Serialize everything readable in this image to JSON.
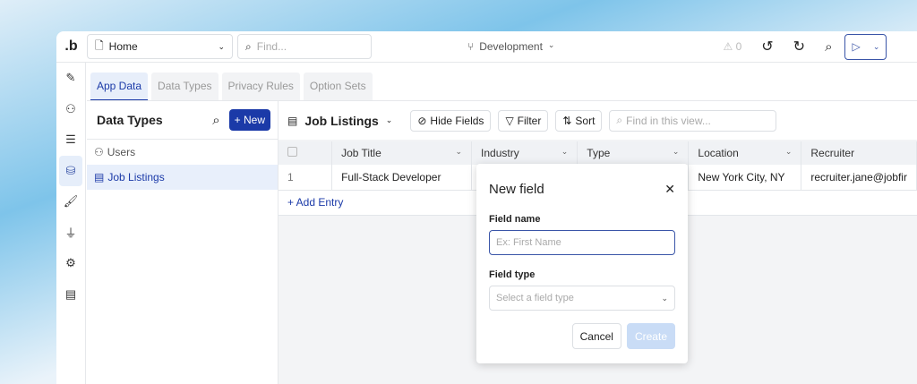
{
  "topbar": {
    "logo": ".b",
    "page": "Home",
    "find_placeholder": "Find...",
    "branch": "Development",
    "warnings": "0"
  },
  "tabs": [
    "App Data",
    "Data Types",
    "Privacy Rules",
    "Option Sets"
  ],
  "left": {
    "title": "Data Types",
    "new_label": "+ New",
    "items": [
      "Users",
      "Job Listings"
    ]
  },
  "toolbar": {
    "view": "Job Listings",
    "hide_fields": "Hide Fields",
    "filter": "Filter",
    "sort": "Sort",
    "find_placeholder": "Find in this view..."
  },
  "table": {
    "columns": [
      "Job Title",
      "Industry",
      "Type",
      "Location",
      "Recruiter"
    ],
    "rows": [
      {
        "num": "1",
        "job_title": "Full-Stack Developer",
        "industry": "",
        "type": "",
        "location": "New York City, NY",
        "recruiter": "recruiter.jane@jobfir"
      }
    ],
    "add_entry": "+ Add Entry"
  },
  "modal": {
    "title": "New field",
    "field_name_label": "Field name",
    "field_name_placeholder": "Ex: First Name",
    "field_type_label": "Field type",
    "field_type_placeholder": "Select a field type",
    "cancel": "Cancel",
    "create": "Create"
  },
  "colors": {
    "accent": "#1b3aa8"
  }
}
